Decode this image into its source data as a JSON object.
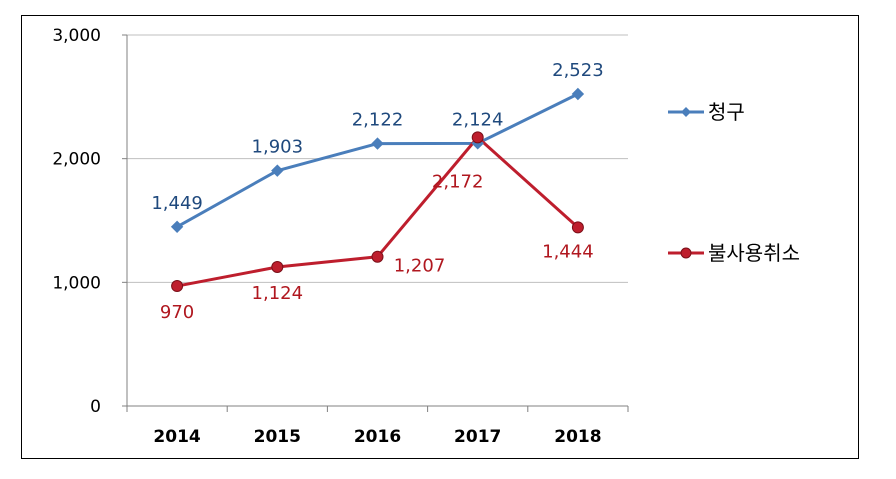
{
  "chart_data": {
    "type": "line",
    "title": "",
    "xlabel": "",
    "ylabel": "",
    "ylim": [
      0,
      3000
    ],
    "yticks": [
      0,
      1000,
      2000,
      3000
    ],
    "ytick_labels": [
      "0",
      "1,000",
      "2,000",
      "3,000"
    ],
    "grid": true,
    "legend_position": "right",
    "categories": [
      "2014",
      "2015",
      "2016",
      "2017",
      "2018"
    ],
    "series": [
      {
        "name": "청구",
        "color": "#4A7EBB",
        "marker": "diamond",
        "values": [
          1449,
          1903,
          2122,
          2124,
          2523
        ],
        "labels": [
          "1,449",
          "1,903",
          "2,122",
          "2,124",
          "2,523"
        ]
      },
      {
        "name": "불사용취소",
        "color": "#BE1E2D",
        "marker": "circle",
        "values": [
          970,
          1124,
          1207,
          2172,
          1444
        ],
        "labels": [
          "970",
          "1,124",
          "1,207",
          "2,172",
          "1,444"
        ]
      }
    ]
  }
}
